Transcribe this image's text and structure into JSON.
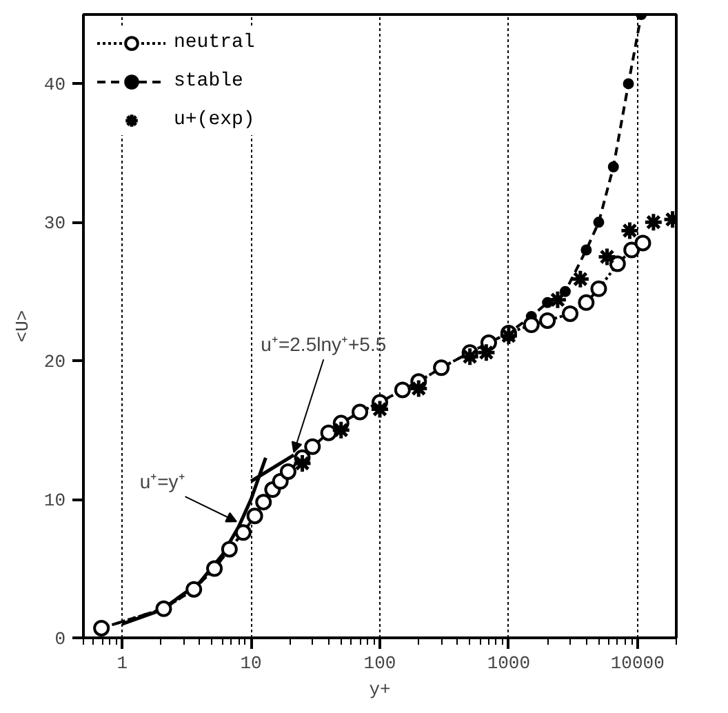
{
  "chart_data": {
    "type": "line",
    "xlabel": "y+",
    "ylabel": "<U>",
    "log": "x",
    "grid": "x",
    "legend": "top left",
    "xlim": [
      0.5,
      20000
    ],
    "xticks": [
      1,
      10,
      100,
      1000,
      10000
    ],
    "ylim": [
      0,
      45
    ],
    "yticks": [
      0,
      10,
      20,
      30,
      40
    ],
    "series": [
      {
        "name": "neutral",
        "color": "#000000",
        "marker": "circle",
        "line_style": "dotted",
        "x": [
          0.69,
          2.1,
          3.6,
          5.2,
          6.8,
          8.7,
          10.7,
          12.5,
          14.7,
          16.9,
          19.4,
          25,
          30,
          40,
          50,
          70,
          100,
          150,
          200,
          300,
          500,
          700,
          1000,
          1500,
          2000,
          3000,
          4000,
          5000,
          7000,
          9000,
          11000
        ],
        "values": [
          0.7,
          2.1,
          3.5,
          5.0,
          6.4,
          7.6,
          8.8,
          9.8,
          10.7,
          11.3,
          12.0,
          13,
          13.8,
          14.8,
          15.5,
          16.3,
          17.0,
          17.9,
          18.5,
          19.5,
          20.6,
          21.3,
          22.0,
          22.6,
          22.9,
          23.4,
          24.2,
          25.2,
          27,
          28,
          28.5
        ]
      },
      {
        "name": "stable",
        "color": "#000000",
        "marker": "circle",
        "line_style": "dashed",
        "x": [
          0.69,
          2.1,
          3.6,
          5.2,
          6.8,
          8.7,
          10.7,
          12.5,
          14.7,
          16.9,
          19.4,
          25,
          30,
          40,
          50,
          70,
          100,
          150,
          200,
          300,
          500,
          700,
          1000,
          1500,
          2000,
          2750,
          4000,
          5000,
          6500,
          8500,
          10700
        ],
        "values": [
          0.7,
          2.1,
          3.5,
          5.0,
          6.4,
          7.6,
          8.8,
          9.8,
          10.7,
          11.3,
          12.0,
          13,
          13.8,
          14.8,
          15.5,
          16.3,
          17.0,
          17.9,
          18.5,
          19.5,
          20.6,
          21.3,
          22.0,
          23.2,
          24.2,
          25,
          28,
          30,
          34,
          40,
          45
        ]
      },
      {
        "name": "u+(exp)",
        "type": "scatter",
        "color": "#000000",
        "marker": "cross",
        "x": [
          25,
          50,
          100,
          200,
          500,
          670,
          1000,
          2400,
          3600,
          5800,
          8700,
          13300,
          18700
        ],
        "values": [
          12.6,
          15,
          16.5,
          18,
          20.3,
          20.6,
          21.8,
          24.4,
          25.9,
          27.5,
          29.4,
          30.0,
          30.2
        ]
      },
      {
        "color": "#000000",
        "marker": "none",
        "line_style": "solid",
        "x": [
          1,
          2,
          4,
          6,
          8,
          10,
          13
        ],
        "values": [
          1,
          2,
          4,
          6,
          8,
          10,
          13
        ]
      },
      {
        "color": "#000000",
        "marker": "none",
        "line_style": "solid",
        "x": [
          10,
          21.5
        ],
        "values": [
          11.3,
          13.2
        ]
      }
    ],
    "annotations": [
      {
        "text": "u⁺=y⁺",
        "x": 7.7,
        "y": 8.4
      },
      {
        "text": "u⁺=2.5lny⁺+5.5",
        "x": 21.5,
        "y": 13.4
      }
    ]
  }
}
